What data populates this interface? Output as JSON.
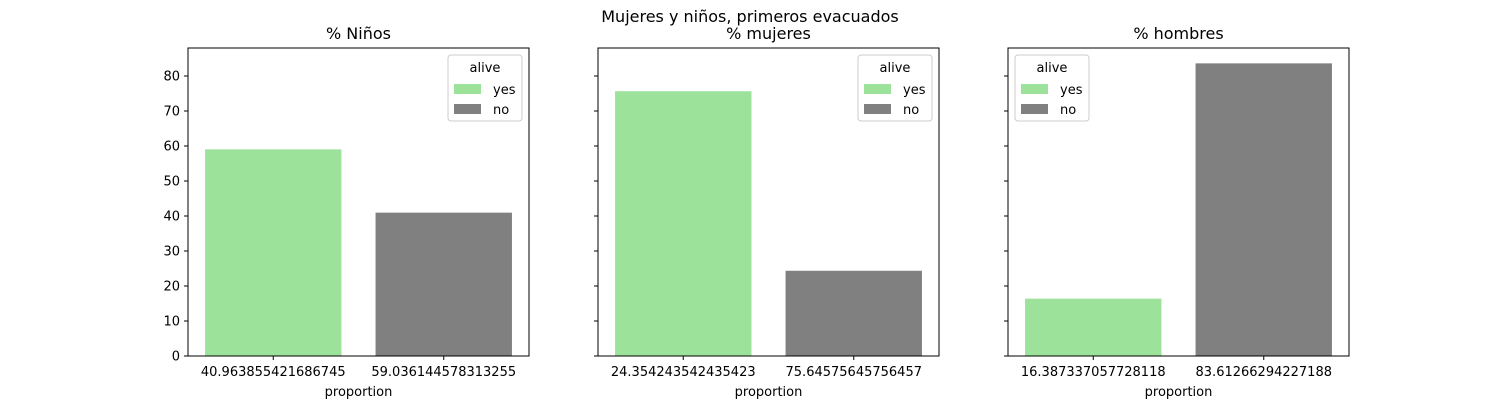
{
  "suptitle": "Mujeres y niños, primeros evacuados",
  "chart_data": [
    {
      "type": "bar",
      "title": "% Niños",
      "xlabel": "proportion",
      "ylabel": "",
      "ylim": [
        0,
        88
      ],
      "yticks": [
        0,
        10,
        20,
        30,
        40,
        50,
        60,
        70,
        80
      ],
      "categories": [
        "40.963855421686745",
        "59.036144578313255"
      ],
      "values": [
        59.04,
        40.96
      ],
      "bar_colors": [
        "#9de29b",
        "#808080"
      ],
      "legend": {
        "title": "alive",
        "position": "top-right",
        "entries": [
          {
            "label": "yes",
            "color": "#9de29b"
          },
          {
            "label": "no",
            "color": "#808080"
          }
        ]
      }
    },
    {
      "type": "bar",
      "title": "% mujeres",
      "xlabel": "proportion",
      "ylabel": "",
      "ylim": [
        0,
        88
      ],
      "yticks": [
        0,
        10,
        20,
        30,
        40,
        50,
        60,
        70,
        80
      ],
      "categories": [
        "24.354243542435423",
        "75.64575645756457"
      ],
      "values": [
        75.65,
        24.35
      ],
      "bar_colors": [
        "#9de29b",
        "#808080"
      ],
      "legend": {
        "title": "alive",
        "position": "top-right",
        "entries": [
          {
            "label": "yes",
            "color": "#9de29b"
          },
          {
            "label": "no",
            "color": "#808080"
          }
        ]
      }
    },
    {
      "type": "bar",
      "title": "% hombres",
      "xlabel": "proportion",
      "ylabel": "",
      "ylim": [
        0,
        88
      ],
      "yticks": [
        0,
        10,
        20,
        30,
        40,
        50,
        60,
        70,
        80
      ],
      "categories": [
        "16.387337057728118",
        "83.61266294227188"
      ],
      "values": [
        16.39,
        83.61
      ],
      "bar_colors": [
        "#9de29b",
        "#808080"
      ],
      "legend": {
        "title": "alive",
        "position": "top-left",
        "entries": [
          {
            "label": "yes",
            "color": "#9de29b"
          },
          {
            "label": "no",
            "color": "#808080"
          }
        ]
      }
    }
  ]
}
